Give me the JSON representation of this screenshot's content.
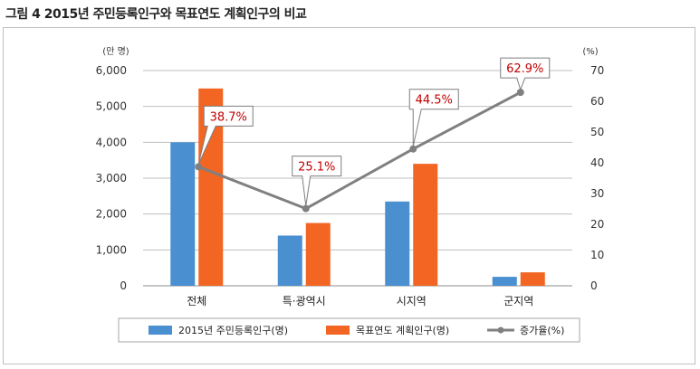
{
  "figure": {
    "title": "그림 4  2015년 주민등록인구와 목표연도 계획인구의 비교"
  },
  "chart_data": {
    "type": "bar",
    "categories": [
      "전체",
      "특·광역시",
      "시지역",
      "군지역"
    ],
    "series": [
      {
        "name": "2015년 주민등록인구(명)",
        "kind": "bar",
        "axis": "left",
        "color": "#4a90d0",
        "values": [
          4000,
          1400,
          2350,
          250
        ]
      },
      {
        "name": "목표연도 계획인구(명)",
        "kind": "bar",
        "axis": "left",
        "color": "#f26522",
        "values": [
          5500,
          1750,
          3400,
          375
        ]
      },
      {
        "name": "증가율(%)",
        "kind": "line",
        "axis": "right",
        "color": "#808080",
        "values": [
          38.7,
          25.1,
          44.5,
          62.9
        ],
        "labels": [
          "38.7%",
          "25.1%",
          "44.5%",
          "62.9%"
        ]
      }
    ],
    "left_axis": {
      "unit": "(만 명)",
      "range": [
        0,
        6000
      ],
      "ticks": [
        "0",
        "1,000",
        "2,000",
        "3,000",
        "4,000",
        "5,000",
        "6,000"
      ]
    },
    "right_axis": {
      "unit": "(%)",
      "range": [
        0,
        70
      ],
      "ticks": [
        "0",
        "10",
        "20",
        "30",
        "40",
        "50",
        "60",
        "70"
      ]
    },
    "grid": true,
    "legend": "bottom"
  }
}
